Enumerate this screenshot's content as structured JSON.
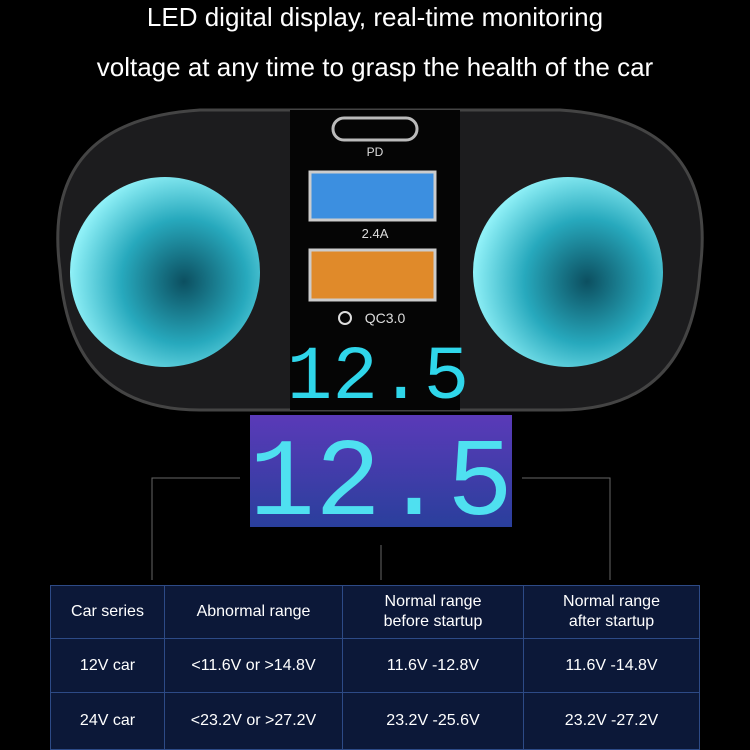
{
  "header": {
    "lines": [
      "LED digital display, real-time monitoring",
      "voltage at any time to grasp the health of the car"
    ]
  },
  "ports": {
    "pd": "PD",
    "usb": "2.4A",
    "qc": "QC3.0"
  },
  "display": {
    "small": "12.5",
    "large": "12.5"
  },
  "table": {
    "headers": [
      "Car series",
      "Abnormal range",
      "Normal range\nbefore startup",
      "Normal range\nafter startup"
    ],
    "rows": [
      [
        "12V car",
        "<11.6V or >14.8V",
        "11.6V -12.8V",
        "11.6V -14.8V"
      ],
      [
        "24V car",
        "<23.2V or >27.2V",
        "23.2V -25.6V",
        "23.2V -27.2V"
      ]
    ]
  }
}
